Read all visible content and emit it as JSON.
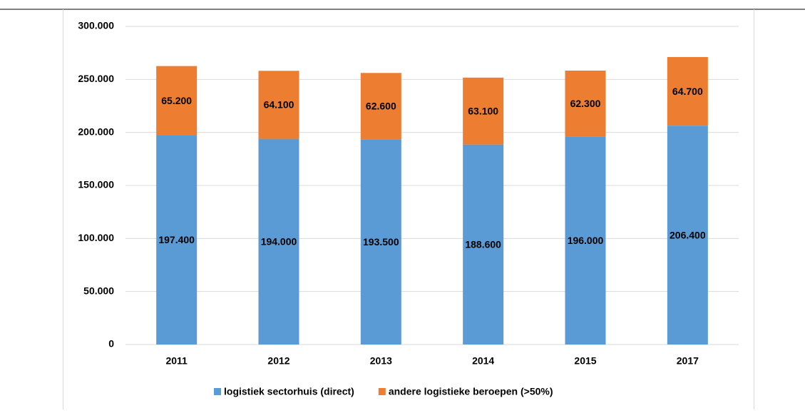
{
  "chart_data": {
    "type": "stacked-bar",
    "categories": [
      "2011",
      "2012",
      "2013",
      "2014",
      "2015",
      "2017"
    ],
    "series": [
      {
        "name": "logistiek sectorhuis (direct)",
        "color": "#5b9bd5",
        "values": [
          197400,
          194000,
          193500,
          188600,
          196000,
          206400
        ],
        "value_labels": [
          "197.400",
          "194.000",
          "193.500",
          "188.600",
          "196.000",
          "206.400"
        ]
      },
      {
        "name": "andere logistieke beroepen (>50%)",
        "color": "#ed7d31",
        "values": [
          65200,
          64100,
          62600,
          63100,
          62300,
          64700
        ],
        "value_labels": [
          "65.200",
          "64.100",
          "62.600",
          "63.100",
          "62.300",
          "64.700"
        ]
      }
    ],
    "ylim": [
      0,
      300000
    ],
    "yticks": [
      0,
      {
        "value": 50000,
        "label": "50.000"
      },
      {
        "value": 100000,
        "label": "100.000"
      },
      {
        "value": 150000,
        "label": "150.000"
      },
      {
        "value": 200000,
        "label": "200.000"
      },
      {
        "value": 250000,
        "label": "250.000"
      },
      {
        "value": 300000,
        "label": "300.000"
      }
    ],
    "grid": true,
    "legend": "bottom"
  }
}
